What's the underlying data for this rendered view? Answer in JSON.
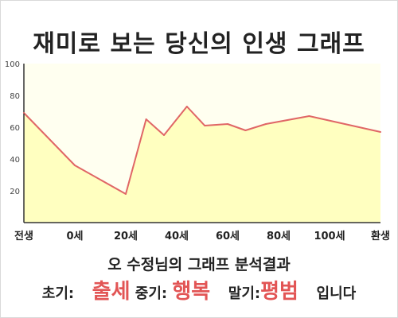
{
  "title": "재미로 보는 당신의 인생 그래프",
  "summary": "오 수정님의 그래프 분석결과",
  "result": {
    "early_label": "초기:",
    "early_value": "출세",
    "middle_label": "중기:",
    "middle_value": "행복",
    "late_label": "말기:",
    "late_value": "평범",
    "ending": "입니다"
  },
  "colors": {
    "line": "#e06666",
    "fill": "#ffffc0",
    "plot_bg": "#fffff0",
    "highlight": "#e25555"
  },
  "chart_data": {
    "type": "area",
    "x_tick_labels": [
      "전생",
      "0세",
      "20세",
      "40세",
      "60세",
      "80세",
      "100세",
      "환생"
    ],
    "x_tick_positions": [
      -20,
      0,
      20,
      40,
      60,
      80,
      100,
      120
    ],
    "y_ticks": [
      20,
      40,
      60,
      80,
      100
    ],
    "xlim": [
      -20,
      120
    ],
    "ylim": [
      0,
      100
    ],
    "grid": false,
    "series": [
      {
        "x": [
          -20,
          0,
          20,
          28,
          35,
          44,
          51,
          60,
          67,
          75,
          92,
          120
        ],
        "y": [
          69,
          36,
          18,
          65,
          55,
          73,
          61,
          62,
          58,
          62,
          67,
          57
        ]
      }
    ]
  }
}
